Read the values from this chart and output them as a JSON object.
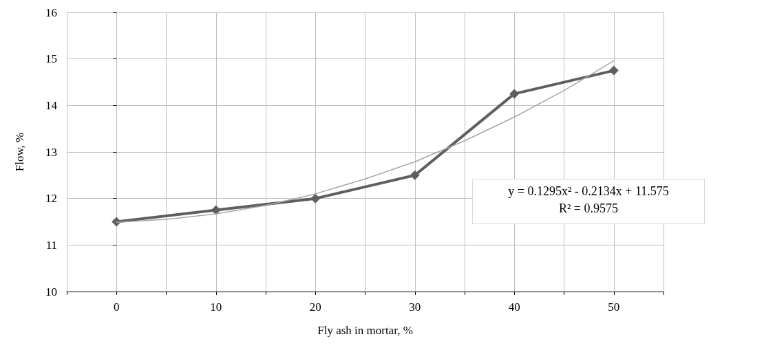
{
  "chart_data": {
    "type": "line",
    "xlabel": "Fly ash in mortar, %",
    "ylabel": "Flow, %",
    "x": [
      0,
      10,
      20,
      30,
      40,
      50
    ],
    "series": [
      {
        "color": "#5f5f5f",
        "values": [
          11.5,
          11.75,
          12,
          12.5,
          14.25,
          14.75
        ],
        "marker": "diamond"
      },
      {
        "type": "line",
        "color": "#a6a6a6",
        "marker": "none",
        "x": [
          0,
          5,
          10,
          15,
          20,
          25,
          30,
          35,
          40,
          45,
          50
        ],
        "values": [
          11.49,
          11.55,
          11.67,
          11.85,
          12.1,
          12.42,
          12.79,
          13.24,
          13.75,
          14.32,
          14.96
        ]
      }
    ],
    "xlim": [
      -5,
      55
    ],
    "xticks": [
      {
        "value": -5,
        "label": null
      },
      0,
      {
        "value": 5,
        "label": null
      },
      10,
      {
        "value": 15,
        "label": null
      },
      20,
      {
        "value": 25,
        "label": null
      },
      30,
      {
        "value": 35,
        "label": null
      },
      40,
      {
        "value": 45,
        "label": null
      },
      50,
      {
        "value": 55,
        "label": null
      }
    ],
    "ylim": [
      10,
      16
    ],
    "yticks": [
      10,
      11,
      12,
      13,
      14,
      15,
      16
    ],
    "grid": true,
    "annotations": [
      "y = 0.1295x² - 0.2134x + 11.575",
      "R² = 0.9575"
    ]
  }
}
